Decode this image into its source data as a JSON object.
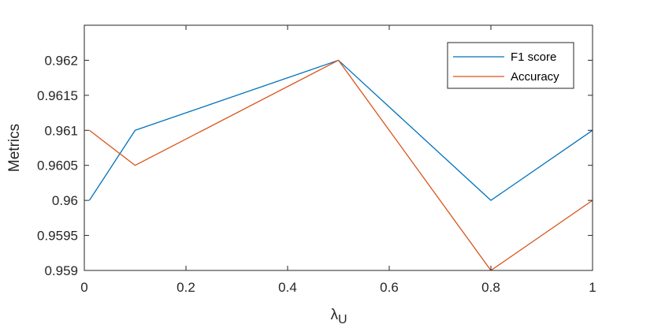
{
  "chart_data": {
    "type": "line",
    "title": "",
    "xlabel": "λ",
    "xlabel_subscript": "U",
    "ylabel": "Metrics",
    "xlim": [
      0,
      1
    ],
    "ylim": [
      0.959,
      0.9625
    ],
    "x": [
      0.01,
      0.1,
      0.5,
      0.8,
      1.0
    ],
    "x_ticks": [
      0,
      0.2,
      0.4,
      0.6,
      0.8,
      1
    ],
    "x_tick_labels": [
      "0",
      "0.2",
      "0.4",
      "0.6",
      "0.8",
      "1"
    ],
    "y_ticks": [
      0.959,
      0.9595,
      0.96,
      0.9605,
      0.961,
      0.9615,
      0.962
    ],
    "y_tick_labels": [
      "0.959",
      "0.9595",
      "0.96",
      "0.9605",
      "0.961",
      "0.9615",
      "0.962"
    ],
    "grid": false,
    "legend_position": "top-right",
    "series": [
      {
        "name": "F1 score",
        "color": "#0072BD",
        "values": [
          0.96,
          0.961,
          0.962,
          0.96,
          0.961
        ]
      },
      {
        "name": "Accuracy",
        "color": "#D95319",
        "values": [
          0.961,
          0.9605,
          0.962,
          0.959,
          0.96
        ]
      }
    ]
  }
}
